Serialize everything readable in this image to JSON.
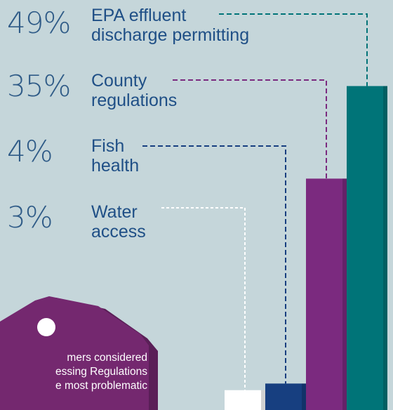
{
  "chart_data": {
    "type": "bar",
    "categories": [
      "Water access",
      "Fish health",
      "County regulations",
      "EPA effluent discharge permitting"
    ],
    "values": [
      3,
      4,
      35,
      49
    ],
    "value_labels": [
      "3%",
      "4%",
      "35%",
      "49%"
    ],
    "ylim": [
      0,
      60
    ],
    "grid": false
  },
  "colors": {
    "water_access": "#ffffff",
    "fish_health": "#173f80",
    "county_regulations": "#7b2a7f",
    "epa": "#007478",
    "background": "#c5d6da",
    "label_text": "#1f4f86",
    "tag": "#74286f"
  },
  "items": [
    {
      "pct": "49%",
      "line1": "EPA effluent",
      "line2": "discharge permitting"
    },
    {
      "pct": "35%",
      "line1": "County",
      "line2": "regulations"
    },
    {
      "pct": "4%",
      "line1": "Fish",
      "line2": "health"
    },
    {
      "pct": "3%",
      "line1": "Water",
      "line2": "access"
    }
  ],
  "tag": {
    "line1": "mers considered",
    "line2": "essing Regulations",
    "line3": "e most problematic"
  }
}
